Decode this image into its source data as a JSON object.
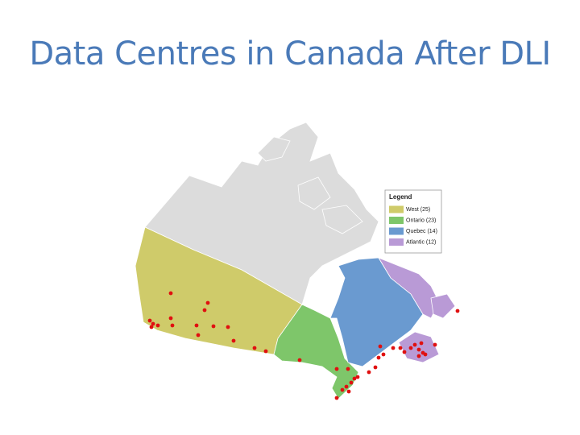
{
  "title": "Data Centres in Canada After DLI",
  "legend": {
    "title": "Legend",
    "items": [
      {
        "label": "West (25)",
        "color": "#cfcb6a"
      },
      {
        "label": "Ontario (23)",
        "color": "#7ec66a"
      },
      {
        "label": "Quebec (14)",
        "color": "#6a9ad0"
      },
      {
        "label": "Atlantic (12)",
        "color": "#b99ad6"
      }
    ]
  }
}
